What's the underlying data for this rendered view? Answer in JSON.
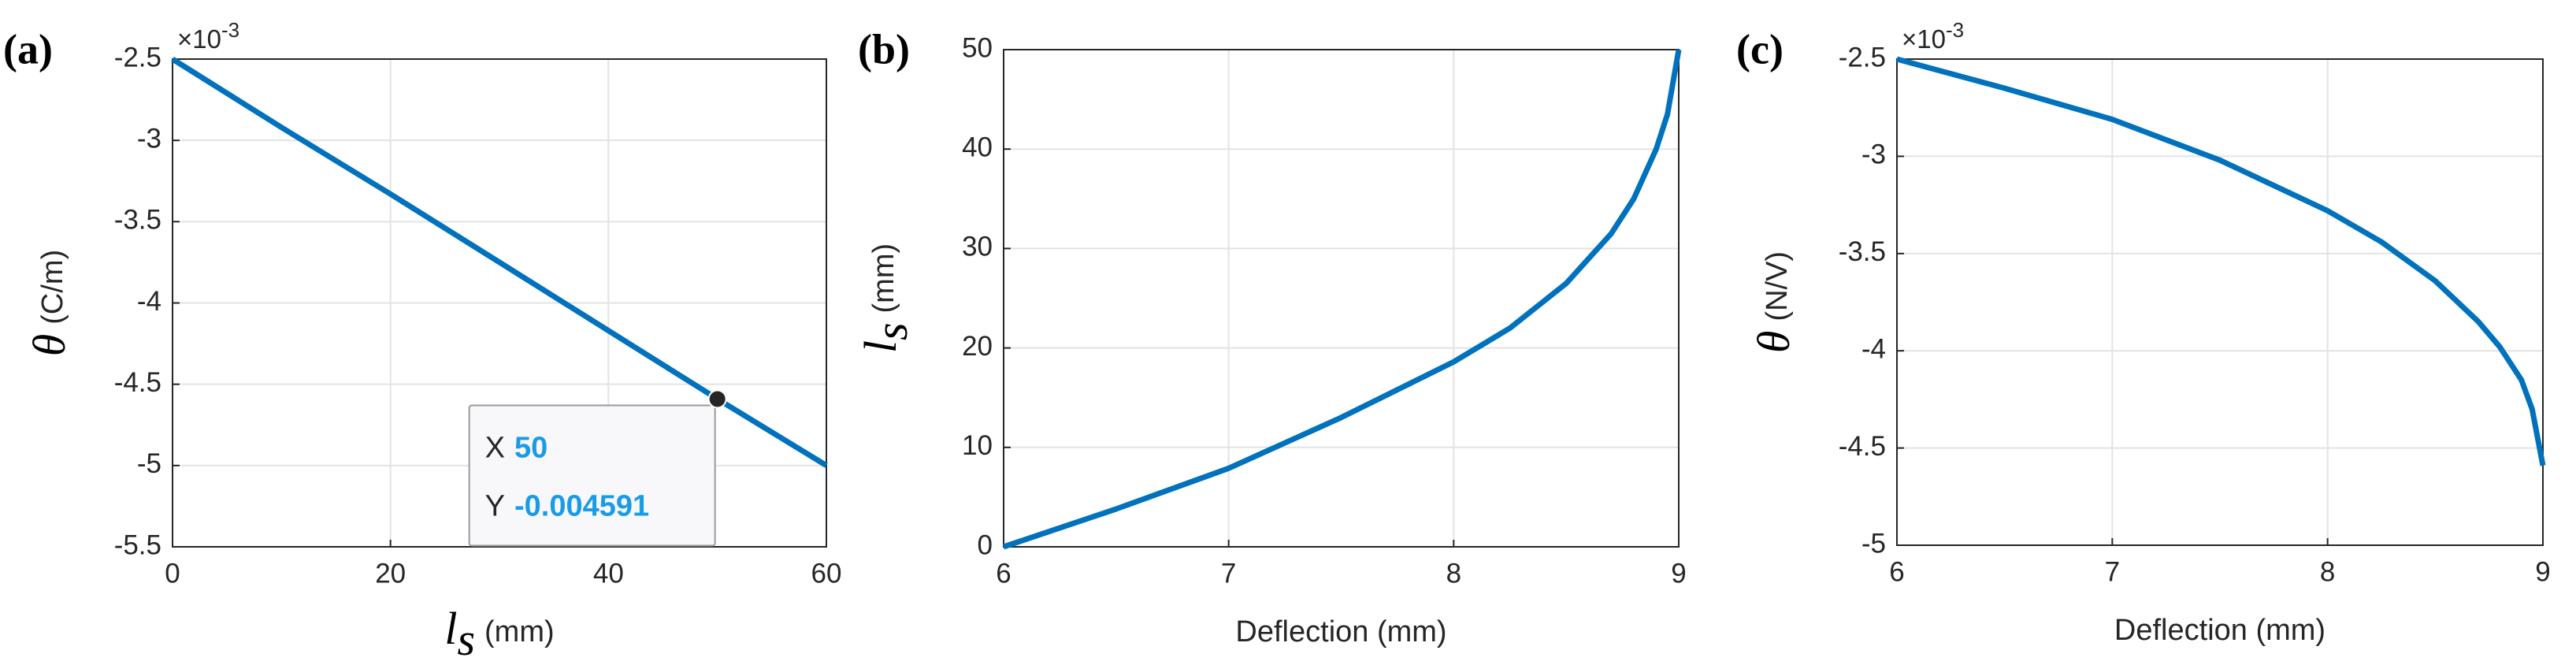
{
  "chart_data": [
    {
      "type": "line",
      "panel_label": "(a)",
      "color": "#0072bd",
      "x_label": {
        "symbol": "l",
        "subscript": "s",
        "unit": "(mm)"
      },
      "y_label": {
        "symbol": "θ",
        "unit": "(C/m)"
      },
      "exponent_label": {
        "base": "×10",
        "power": "-3"
      },
      "x": [
        0,
        10,
        20,
        30,
        40,
        50,
        60
      ],
      "values": [
        -2.5,
        -2.92,
        -3.33,
        -3.75,
        -4.17,
        -4.591,
        -5.0
      ],
      "xlim": [
        0,
        60
      ],
      "xticks": [
        0,
        20,
        40,
        60
      ],
      "ylim": [
        -5.5,
        -2.5
      ],
      "yticks": [
        -5.5,
        -5,
        -4.5,
        -4,
        -3.5,
        -3,
        -2.5
      ],
      "grid": true,
      "datatip": {
        "x_name": "X",
        "y_name": "Y",
        "x": 50,
        "y": -4.591,
        "x_label": "50",
        "y_label": "-0.004591"
      }
    },
    {
      "type": "line",
      "panel_label": "(b)",
      "color": "#0072bd",
      "x_label": {
        "text": "Deflection (mm)"
      },
      "y_label": {
        "symbol": "l",
        "subscript": "s",
        "unit": "(mm)"
      },
      "x": [
        6,
        6.5,
        7,
        7.5,
        8,
        8.25,
        8.5,
        8.7,
        8.8,
        8.9,
        8.95,
        9
      ],
      "values": [
        0,
        3.8,
        7.9,
        13,
        18.6,
        22,
        26.5,
        31.5,
        35,
        40,
        43.5,
        50
      ],
      "xlim": [
        6,
        9
      ],
      "xticks": [
        6,
        7,
        8,
        9
      ],
      "ylim": [
        0,
        50
      ],
      "yticks": [
        0,
        10,
        20,
        30,
        40,
        50
      ],
      "grid": true
    },
    {
      "type": "line",
      "panel_label": "(c)",
      "color": "#0072bd",
      "x_label": {
        "text": "Deflection (mm)"
      },
      "y_label": {
        "symbol": "θ",
        "unit": "(N/V)"
      },
      "exponent_label": {
        "base": "×10",
        "power": "-3"
      },
      "x": [
        6,
        6.5,
        7,
        7.5,
        8,
        8.25,
        8.5,
        8.7,
        8.8,
        8.9,
        8.95,
        9
      ],
      "values": [
        -2.5,
        -2.65,
        -2.81,
        -3.02,
        -3.28,
        -3.44,
        -3.64,
        -3.85,
        -3.98,
        -4.15,
        -4.3,
        -4.59
      ],
      "xlim": [
        6,
        9
      ],
      "xticks": [
        6,
        7,
        8,
        9
      ],
      "ylim": [
        -5,
        -2.5
      ],
      "yticks": [
        -5,
        -4.5,
        -4,
        -3.5,
        -3,
        -2.5
      ],
      "grid": true
    }
  ]
}
